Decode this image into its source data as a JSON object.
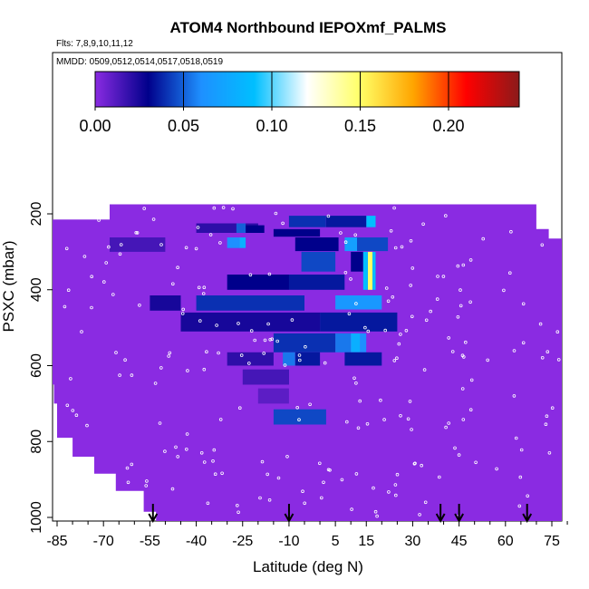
{
  "chart_data": {
    "type": "heatmap",
    "title": "ATOM4 Northbound IEPOXmf_PALMS",
    "annotations": {
      "flights": "Flts: 7,8,9,10,11,12",
      "dates": "MMDD: 0509,0512,0514,0517,0518,0519"
    },
    "xlabel": "Latitude (deg N)",
    "ylabel": "PSXC (mbar)",
    "xlim": [
      -88,
      88
    ],
    "ylim": [
      1020,
      90
    ],
    "x_ticks": [
      -85,
      -70,
      -55,
      -40,
      -25,
      -10,
      5,
      15,
      30,
      45,
      60,
      75
    ],
    "y_ticks": [
      200,
      400,
      600,
      800,
      1000
    ],
    "colorbar": {
      "range": [
        0,
        0.24
      ],
      "ticks": [
        0.0,
        0.05,
        0.1,
        0.15,
        0.2
      ],
      "tick_labels": [
        "0.00",
        "0.05",
        "0.10",
        "0.15",
        "0.20"
      ],
      "colors": [
        "#8a2be2",
        "#00008b",
        "#1e90ff",
        "#00bfff",
        "#ffffff",
        "#ffff66",
        "#ffa500",
        "#ff0000",
        "#8b1a1a"
      ]
    },
    "background_value": 0.0,
    "background_color": "#8a2be2",
    "cells": [
      {
        "lat": [
          -40,
          -20
        ],
        "p": [
          225,
          250
        ],
        "value": 0.02
      },
      {
        "lat": [
          -27,
          -24
        ],
        "p": [
          225,
          250
        ],
        "value": 0.05
      },
      {
        "lat": [
          -24,
          -18
        ],
        "p": [
          230,
          250
        ],
        "value": 0.03
      },
      {
        "lat": [
          -68,
          -50
        ],
        "p": [
          262,
          300
        ],
        "value": 0.015
      },
      {
        "lat": [
          -30,
          -26
        ],
        "p": [
          262,
          290
        ],
        "value": 0.06
      },
      {
        "lat": [
          -26,
          -24
        ],
        "p": [
          262,
          290
        ],
        "value": 0.08
      },
      {
        "lat": [
          -15,
          0
        ],
        "p": [
          240,
          260
        ],
        "value": 0.03
      },
      {
        "lat": [
          -10,
          2
        ],
        "p": [
          205,
          235
        ],
        "value": 0.04
      },
      {
        "lat": [
          2,
          15
        ],
        "p": [
          205,
          235
        ],
        "value": 0.035
      },
      {
        "lat": [
          15,
          18
        ],
        "p": [
          205,
          235
        ],
        "value": 0.09
      },
      {
        "lat": [
          -8,
          6
        ],
        "p": [
          262,
          298
        ],
        "value": 0.03
      },
      {
        "lat": [
          8,
          12
        ],
        "p": [
          262,
          298
        ],
        "value": 0.07
      },
      {
        "lat": [
          12,
          22
        ],
        "p": [
          262,
          298
        ],
        "value": 0.045
      },
      {
        "lat": [
          -6,
          5
        ],
        "p": [
          300,
          352
        ],
        "value": 0.045
      },
      {
        "lat": [
          10,
          14
        ],
        "p": [
          300,
          352
        ],
        "value": 0.03
      },
      {
        "lat": [
          14,
          15.5
        ],
        "p": [
          300,
          400
        ],
        "value": 0.09
      },
      {
        "lat": [
          15.5,
          17
        ],
        "p": [
          300,
          400
        ],
        "value": 0.15
      },
      {
        "lat": [
          17,
          18
        ],
        "p": [
          300,
          400
        ],
        "value": 0.09
      },
      {
        "lat": [
          -30,
          -10
        ],
        "p": [
          360,
          400
        ],
        "value": 0.03
      },
      {
        "lat": [
          -10,
          8
        ],
        "p": [
          360,
          400
        ],
        "value": 0.035
      },
      {
        "lat": [
          -55,
          -45
        ],
        "p": [
          415,
          455
        ],
        "value": 0.025
      },
      {
        "lat": [
          -40,
          -5
        ],
        "p": [
          415,
          455
        ],
        "value": 0.04
      },
      {
        "lat": [
          5,
          20
        ],
        "p": [
          415,
          452
        ],
        "value": 0.065
      },
      {
        "lat": [
          -45,
          0
        ],
        "p": [
          460,
          510
        ],
        "value": 0.025
      },
      {
        "lat": [
          0,
          25
        ],
        "p": [
          460,
          510
        ],
        "value": 0.035
      },
      {
        "lat": [
          -15,
          5
        ],
        "p": [
          515,
          565
        ],
        "value": 0.04
      },
      {
        "lat": [
          5,
          10
        ],
        "p": [
          515,
          565
        ],
        "value": 0.055
      },
      {
        "lat": [
          10,
          13
        ],
        "p": [
          515,
          565
        ],
        "value": 0.08
      },
      {
        "lat": [
          13,
          15
        ],
        "p": [
          515,
          565
        ],
        "value": 0.06
      },
      {
        "lat": [
          -30,
          -15
        ],
        "p": [
          565,
          600
        ],
        "value": 0.02
      },
      {
        "lat": [
          -12,
          -8
        ],
        "p": [
          565,
          600
        ],
        "value": 0.055
      },
      {
        "lat": [
          -8,
          0
        ],
        "p": [
          565,
          600
        ],
        "value": 0.035
      },
      {
        "lat": [
          8,
          20
        ],
        "p": [
          565,
          600
        ],
        "value": 0.035
      },
      {
        "lat": [
          -25,
          -10
        ],
        "p": [
          610,
          650
        ],
        "value": 0.015
      },
      {
        "lat": [
          -20,
          -10
        ],
        "p": [
          660,
          700
        ],
        "value": 0.01
      },
      {
        "lat": [
          -15,
          2
        ],
        "p": [
          715,
          755
        ],
        "value": 0.045
      }
    ],
    "arrows_lat": [
      -54,
      -10,
      39,
      45,
      67
    ],
    "colors": {
      "background": "#8a2be2",
      "markers": "#ffffff"
    }
  }
}
